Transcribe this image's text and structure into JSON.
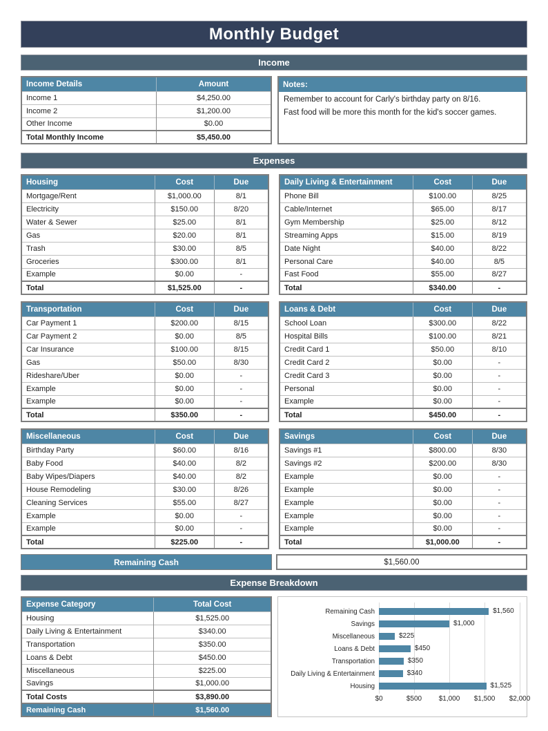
{
  "title": "Monthly Budget",
  "income": {
    "section_label": "Income",
    "table": {
      "title": "Income Details",
      "amount_label": "Amount",
      "rows": [
        {
          "name": "Income 1",
          "amount": "$4,250.00"
        },
        {
          "name": "Income 2",
          "amount": "$1,200.00"
        },
        {
          "name": "Other Income",
          "amount": "$0.00"
        },
        {
          "name": "Total Monthly Income",
          "amount": "$5,450.00",
          "style": "total"
        }
      ]
    }
  },
  "notes": {
    "title": "Notes:",
    "lines": [
      "Remember to account for Carly's birthday party on 8/16.",
      "Fast food will be more this month for the kid's soccer games."
    ]
  },
  "expenses": {
    "section_label": "Expenses",
    "col_cost": "Cost",
    "col_due": "Due",
    "tables": [
      {
        "title": "Housing",
        "rows": [
          {
            "name": "Mortgage/Rent",
            "cost": "$1,000.00",
            "due": "8/1"
          },
          {
            "name": "Electricity",
            "cost": "$150.00",
            "due": "8/20"
          },
          {
            "name": "Water & Sewer",
            "cost": "$25.00",
            "due": "8/1"
          },
          {
            "name": "Gas",
            "cost": "$20.00",
            "due": "8/1"
          },
          {
            "name": "Trash",
            "cost": "$30.00",
            "due": "8/5"
          },
          {
            "name": "Groceries",
            "cost": "$300.00",
            "due": "8/1"
          },
          {
            "name": "Example",
            "cost": "$0.00",
            "due": "-"
          },
          {
            "name": "Total",
            "cost": "$1,525.00",
            "due": "-",
            "style": "total"
          }
        ]
      },
      {
        "title": "Daily Living & Entertainment",
        "rows": [
          {
            "name": "Phone Bill",
            "cost": "$100.00",
            "due": "8/25"
          },
          {
            "name": "Cable/Internet",
            "cost": "$65.00",
            "due": "8/17"
          },
          {
            "name": "Gym Membership",
            "cost": "$25.00",
            "due": "8/12"
          },
          {
            "name": "Streaming Apps",
            "cost": "$15.00",
            "due": "8/19"
          },
          {
            "name": "Date Night",
            "cost": "$40.00",
            "due": "8/22"
          },
          {
            "name": "Personal Care",
            "cost": "$40.00",
            "due": "8/5"
          },
          {
            "name": "Fast Food",
            "cost": "$55.00",
            "due": "8/27"
          },
          {
            "name": "Total",
            "cost": "$340.00",
            "due": "-",
            "style": "total"
          }
        ]
      },
      {
        "title": "Transportation",
        "rows": [
          {
            "name": "Car Payment 1",
            "cost": "$200.00",
            "due": "8/15"
          },
          {
            "name": "Car Payment 2",
            "cost": "$0.00",
            "due": "8/5"
          },
          {
            "name": "Car Insurance",
            "cost": "$100.00",
            "due": "8/15"
          },
          {
            "name": "Gas",
            "cost": "$50.00",
            "due": "8/30"
          },
          {
            "name": "Rideshare/Uber",
            "cost": "$0.00",
            "due": "-"
          },
          {
            "name": "Example",
            "cost": "$0.00",
            "due": "-"
          },
          {
            "name": "Example",
            "cost": "$0.00",
            "due": "-"
          },
          {
            "name": "Total",
            "cost": "$350.00",
            "due": "-",
            "style": "total"
          }
        ]
      },
      {
        "title": "Loans & Debt",
        "rows": [
          {
            "name": "School Loan",
            "cost": "$300.00",
            "due": "8/22"
          },
          {
            "name": "Hospital Bills",
            "cost": "$100.00",
            "due": "8/21"
          },
          {
            "name": "Credit Card 1",
            "cost": "$50.00",
            "due": "8/10"
          },
          {
            "name": "Credit Card 2",
            "cost": "$0.00",
            "due": "-"
          },
          {
            "name": "Credit Card 3",
            "cost": "$0.00",
            "due": "-"
          },
          {
            "name": "Personal",
            "cost": "$0.00",
            "due": "-"
          },
          {
            "name": "Example",
            "cost": "$0.00",
            "due": "-"
          },
          {
            "name": "Total",
            "cost": "$450.00",
            "due": "-",
            "style": "total"
          }
        ]
      },
      {
        "title": "Miscellaneous",
        "rows": [
          {
            "name": "Birthday Party",
            "cost": "$60.00",
            "due": "8/16"
          },
          {
            "name": "Baby Food",
            "cost": "$40.00",
            "due": "8/2"
          },
          {
            "name": "Baby Wipes/Diapers",
            "cost": "$40.00",
            "due": "8/2"
          },
          {
            "name": "House Remodeling",
            "cost": "$30.00",
            "due": "8/26"
          },
          {
            "name": "Cleaning Services",
            "cost": "$55.00",
            "due": "8/27"
          },
          {
            "name": "Example",
            "cost": "$0.00",
            "due": "-"
          },
          {
            "name": "Example",
            "cost": "$0.00",
            "due": "-"
          },
          {
            "name": "Total",
            "cost": "$225.00",
            "due": "-",
            "style": "total"
          }
        ]
      },
      {
        "title": "Savings",
        "rows": [
          {
            "name": "Savings #1",
            "cost": "$800.00",
            "due": "8/30"
          },
          {
            "name": "Savings #2",
            "cost": "$200.00",
            "due": "8/30"
          },
          {
            "name": "Example",
            "cost": "$0.00",
            "due": "-"
          },
          {
            "name": "Example",
            "cost": "$0.00",
            "due": "-"
          },
          {
            "name": "Example",
            "cost": "$0.00",
            "due": "-"
          },
          {
            "name": "Example",
            "cost": "$0.00",
            "due": "-"
          },
          {
            "name": "Example",
            "cost": "$0.00",
            "due": "-"
          },
          {
            "name": "Total",
            "cost": "$1,000.00",
            "due": "-",
            "style": "total"
          }
        ]
      }
    ]
  },
  "remaining_cash": {
    "label": "Remaining Cash",
    "value": "$1,560.00"
  },
  "breakdown": {
    "section_label": "Expense Breakdown",
    "table": {
      "title": "Expense Category",
      "total_cost_label": "Total Cost",
      "rows": [
        {
          "name": "Housing",
          "cost": "$1,525.00"
        },
        {
          "name": "Daily Living & Entertainment",
          "cost": "$340.00"
        },
        {
          "name": "Transportation",
          "cost": "$350.00"
        },
        {
          "name": "Loans & Debt",
          "cost": "$450.00"
        },
        {
          "name": "Miscellaneous",
          "cost": "$225.00"
        },
        {
          "name": "Savings",
          "cost": "$1,000.00"
        },
        {
          "name": "Total Costs",
          "cost": "$3,890.00",
          "style": "total"
        },
        {
          "name": "Remaining Cash",
          "cost": "$1,560.00",
          "style": "highlight"
        }
      ]
    }
  },
  "chart_data": {
    "type": "bar",
    "orientation": "horizontal",
    "categories": [
      "Remaining Cash",
      "Savings",
      "Miscellaneous",
      "Loans & Debt",
      "Transportation",
      "Daily Living & Entertainment",
      "Housing"
    ],
    "values": [
      1560,
      1000,
      225,
      450,
      350,
      340,
      1525
    ],
    "value_labels": [
      "$1,560",
      "$1,000",
      "$225",
      "$450",
      "$350",
      "$340",
      "$1,525"
    ],
    "xlim": [
      0,
      2000
    ],
    "tick_values": [
      0,
      500,
      1000,
      1500,
      2000
    ],
    "tick_labels": [
      "$0",
      "$500",
      "$1,000",
      "$1,500",
      "$2,000"
    ],
    "bar_color": "#4e86a5",
    "grid": true,
    "legend": false,
    "title": "",
    "xlabel": "",
    "ylabel": ""
  }
}
